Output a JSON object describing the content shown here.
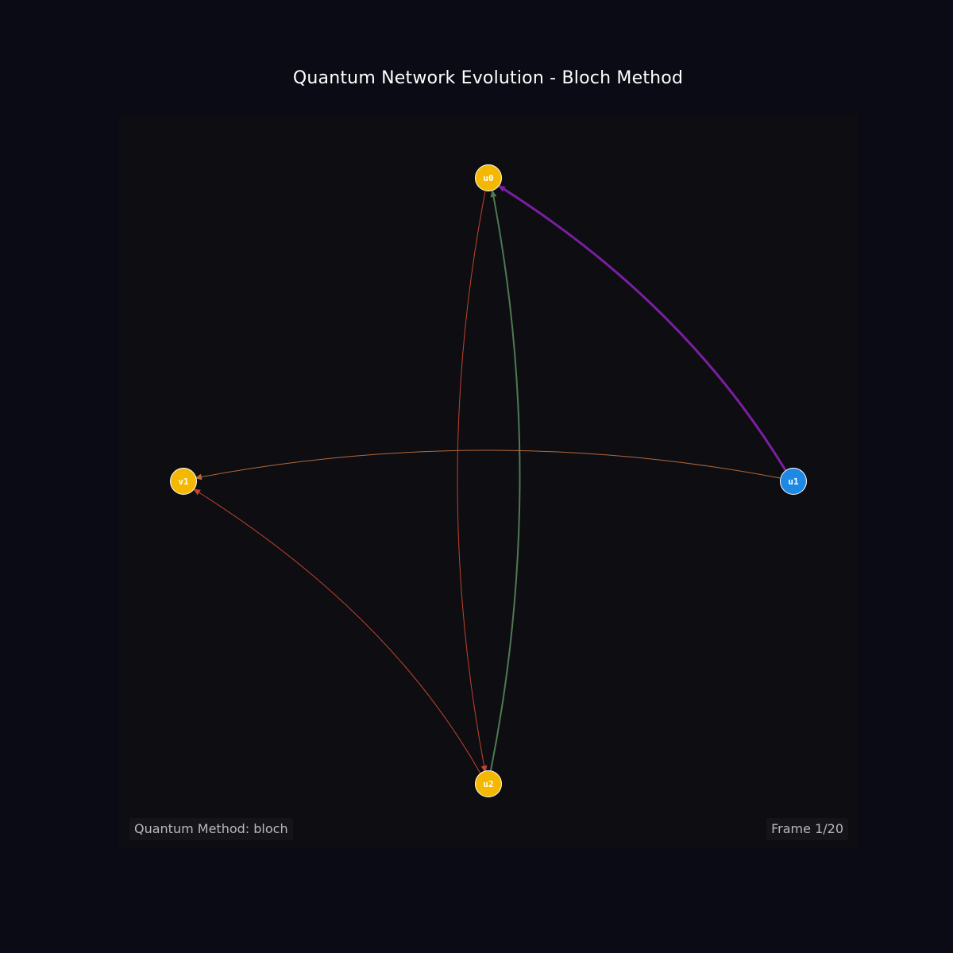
{
  "title": "Quantum Network Evolution - Bloch Method",
  "method_label": "Quantum Method: bloch",
  "frame_label": "Frame 1/20",
  "colors": {
    "background": "#0a0b14",
    "plot_background": "#0e0d12",
    "node_yellow": "#f5b800",
    "node_blue": "#1e88e5",
    "edge_purple": "#7b1fa2",
    "edge_green": "#4e7a52",
    "edge_orange": "#b06a3e",
    "edge_red": "#c0442e"
  },
  "nodes": [
    {
      "id": "u0",
      "label": "u0",
      "color": "#f5b800"
    },
    {
      "id": "v1",
      "label": "v1",
      "color": "#f5b800"
    },
    {
      "id": "u1",
      "label": "u1",
      "color": "#1e88e5"
    },
    {
      "id": "u2",
      "label": "u2",
      "color": "#f5b800"
    }
  ],
  "edges": [
    {
      "from": "u1",
      "to": "u0",
      "color": "#7b1fa2"
    },
    {
      "from": "u2",
      "to": "u0",
      "color": "#4e7a52"
    },
    {
      "from": "u0",
      "to": "u2",
      "color": "#c0442e"
    },
    {
      "from": "u1",
      "to": "v1",
      "color": "#b06a3e"
    },
    {
      "from": "u2",
      "to": "v1",
      "color": "#c0442e"
    }
  ]
}
